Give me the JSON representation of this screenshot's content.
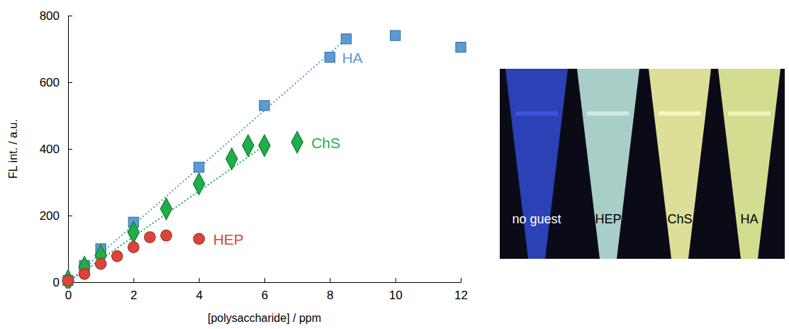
{
  "chart_data": {
    "type": "scatter",
    "x_label": "[polysaccharide] / ppm",
    "y_label": "FL int. / a.u.",
    "xlim": [
      0,
      12
    ],
    "xticks": [
      0,
      2,
      4,
      6,
      8,
      10,
      12
    ],
    "ylim": [
      0,
      800
    ],
    "yticks": [
      0,
      200,
      400,
      600,
      800
    ],
    "grid": false,
    "series": [
      {
        "name": "HA",
        "color": "#5b9bd5",
        "marker": "square",
        "line_style": "dotted",
        "x": [
          0,
          0.5,
          1,
          2,
          4,
          6,
          8,
          8.5,
          10,
          12
        ],
        "values": [
          5,
          50,
          100,
          180,
          345,
          530,
          675,
          730,
          740,
          705
        ],
        "trend": {
          "x": [
            0,
            8.5
          ],
          "values": [
            0,
            730
          ]
        }
      },
      {
        "name": "ChS",
        "color": "#1fae4b",
        "marker": "diamond",
        "line_style": "dotted",
        "x": [
          0,
          0.5,
          1,
          2,
          3,
          4,
          5,
          5.5,
          6,
          7
        ],
        "values": [
          5,
          45,
          80,
          150,
          220,
          295,
          370,
          410,
          410,
          420
        ],
        "trend": {
          "x": [
            0,
            6
          ],
          "values": [
            0,
            410
          ]
        }
      },
      {
        "name": "HEP",
        "color": "#d9453b",
        "marker": "circle",
        "x": [
          0,
          0.5,
          1,
          1.5,
          2,
          2.5,
          3,
          4
        ],
        "values": [
          5,
          25,
          55,
          78,
          105,
          135,
          140,
          130
        ]
      }
    ]
  },
  "photo": {
    "labels": [
      "no guest",
      "HEP",
      "ChS",
      "HA"
    ]
  }
}
